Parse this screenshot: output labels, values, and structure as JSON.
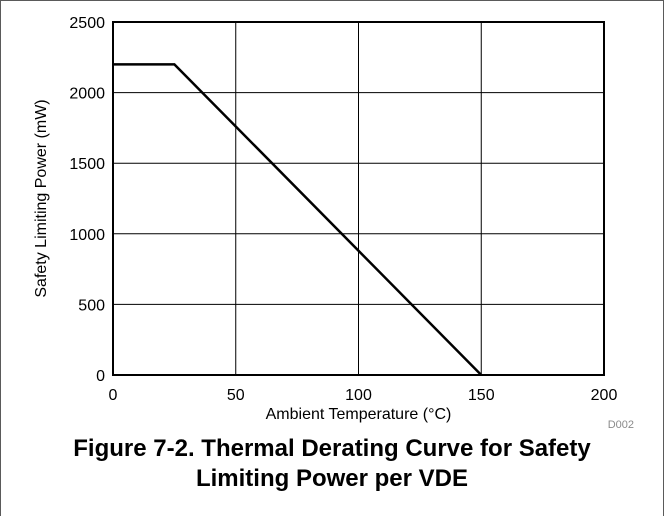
{
  "chart_data": {
    "type": "line",
    "xlabel": "Ambient Temperature (°C)",
    "ylabel": "Safety Limiting Power (mW)",
    "xlim": [
      0,
      200
    ],
    "ylim": [
      0,
      2500
    ],
    "x_ticks": [
      0,
      50,
      100,
      150,
      200
    ],
    "y_ticks": [
      0,
      500,
      1000,
      1500,
      2000,
      2500
    ],
    "grid": true,
    "series": [
      {
        "x": [
          0,
          25,
          150
        ],
        "y": [
          2200,
          2200,
          0
        ]
      }
    ],
    "annotation": "D002"
  },
  "caption": {
    "line1": "Figure 7-2. Thermal Derating Curve for Safety",
    "line2": "Limiting Power per VDE"
  },
  "colors": {
    "line": "#000000",
    "grid": "#000000",
    "annotation": "#8a8a8a"
  }
}
